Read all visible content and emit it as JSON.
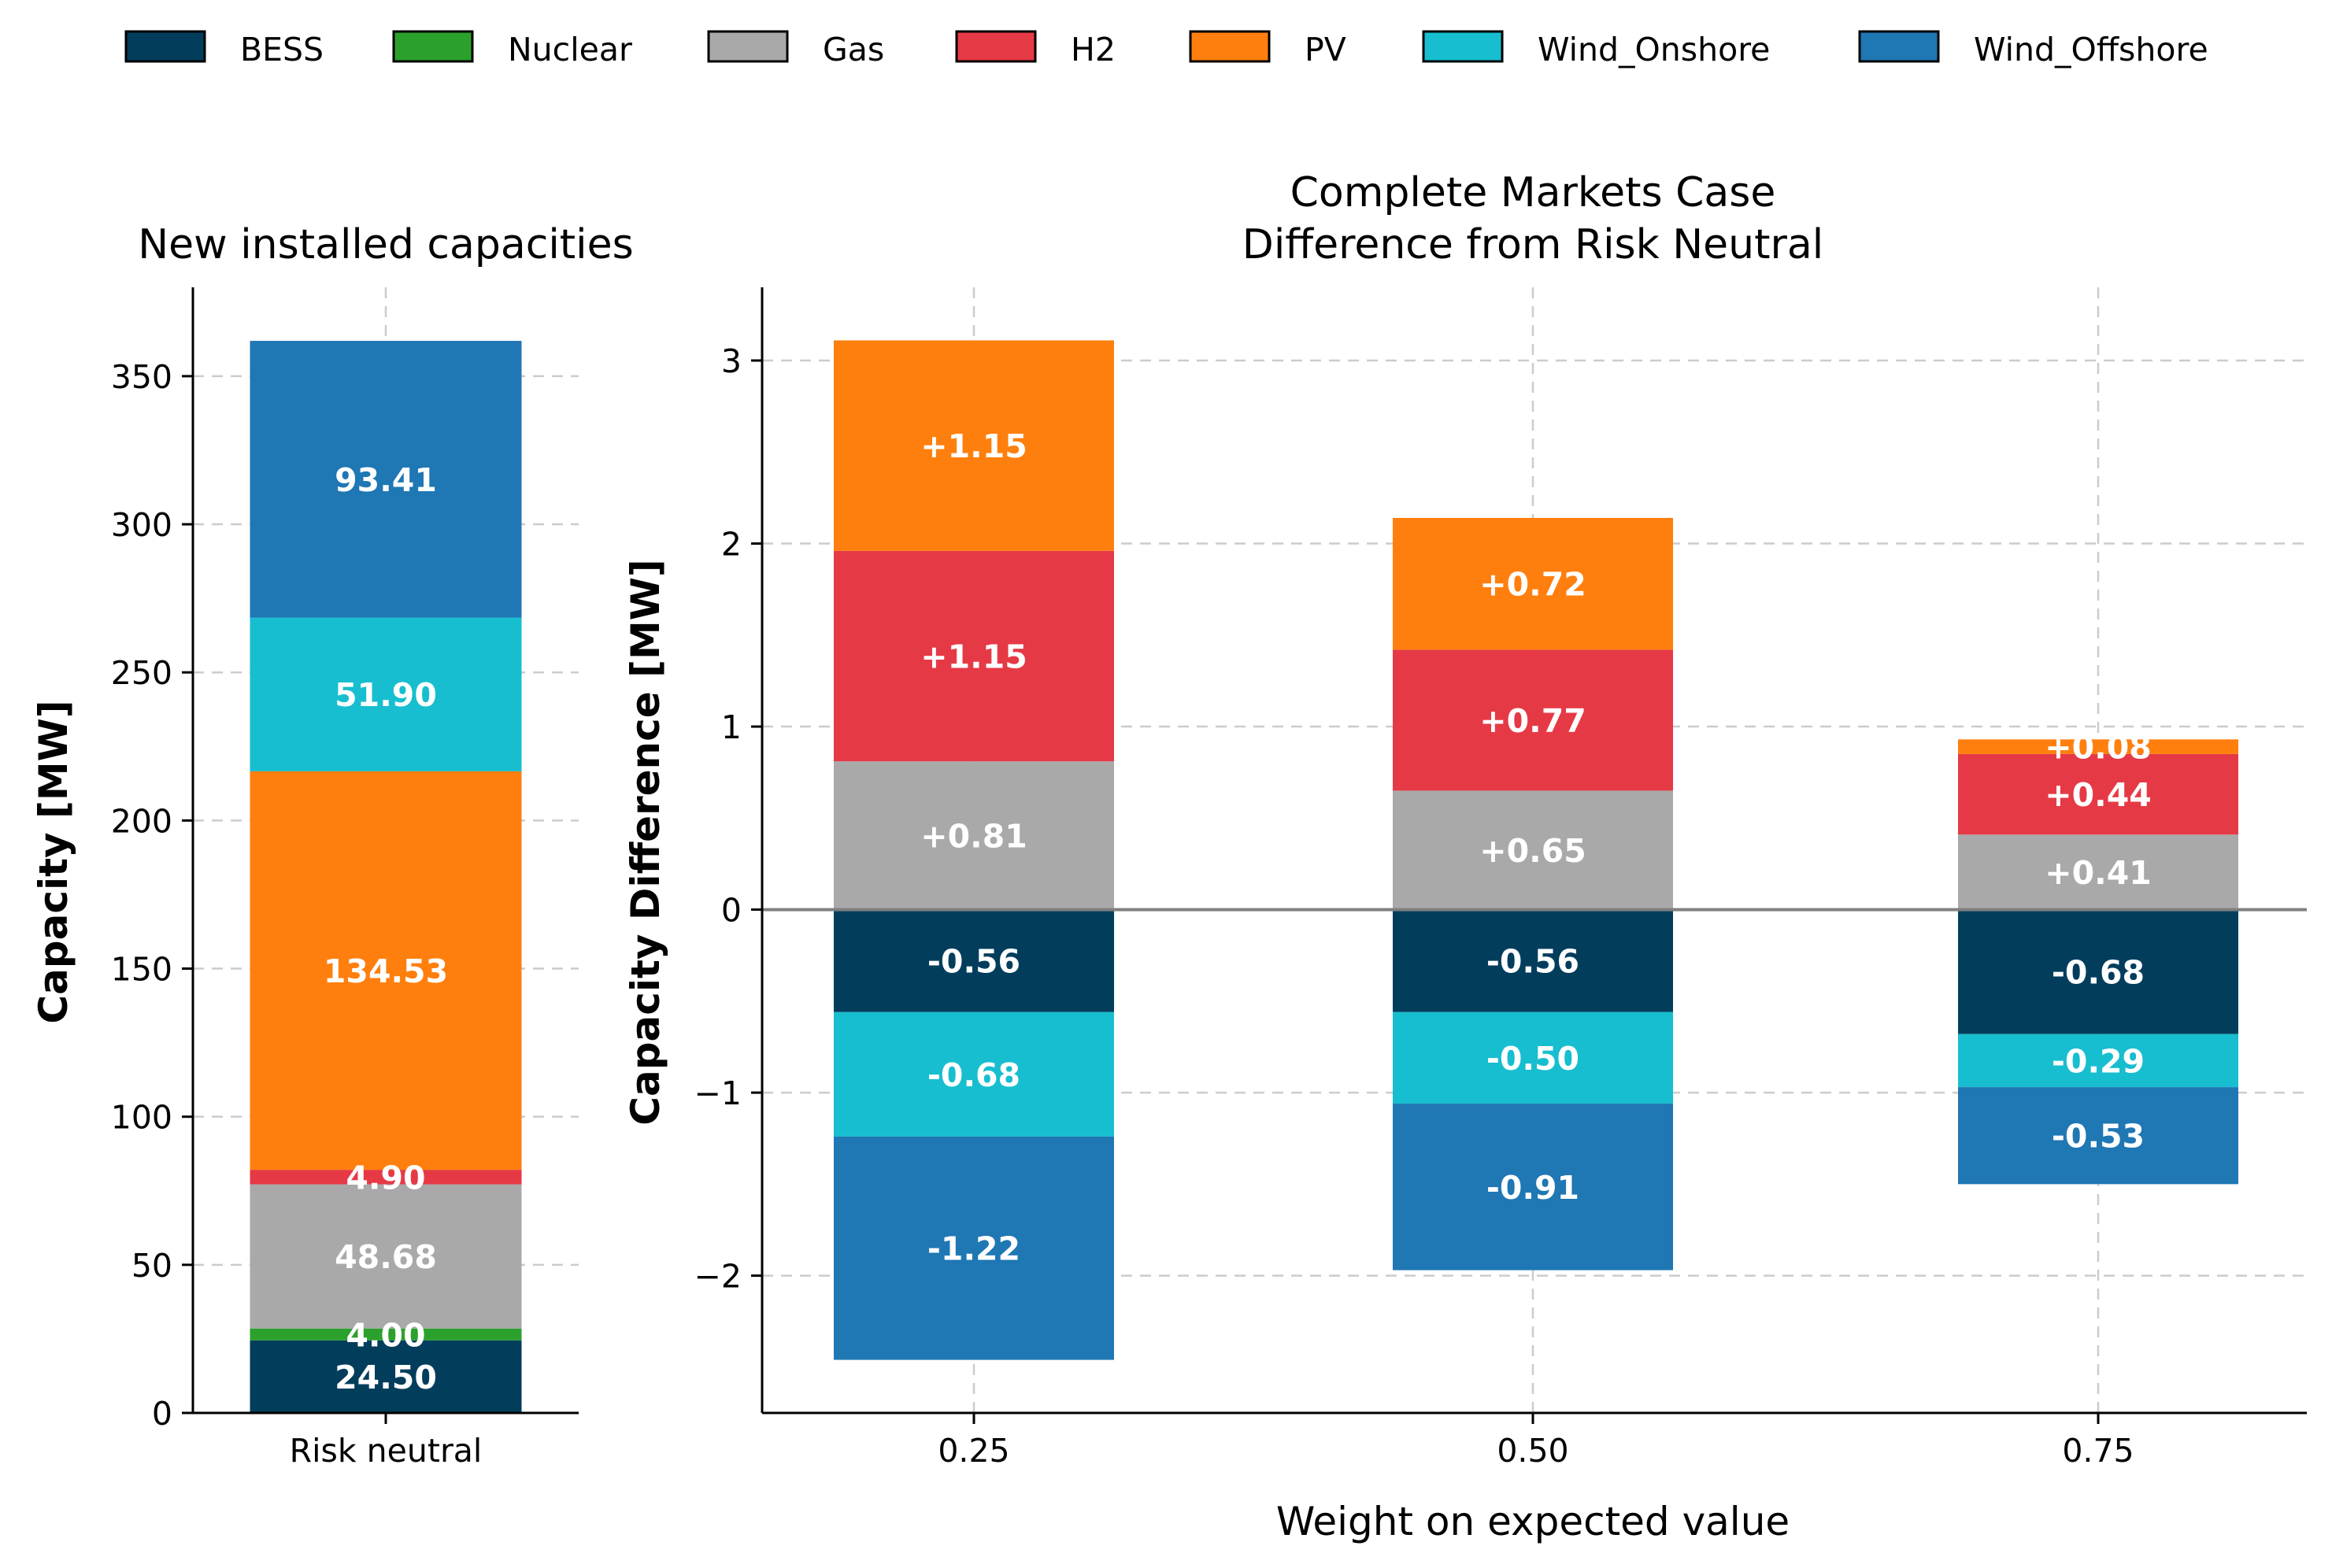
{
  "colors": {
    "BESS": "#023E5C",
    "Nuclear": "#2CA02C",
    "Gas": "#A9A9A9",
    "H2": "#E63946",
    "PV": "#FF7F0E",
    "Wind_Onshore": "#17BECF",
    "Wind_Offshore": "#1F77B4"
  },
  "legend": [
    "BESS",
    "Nuclear",
    "Gas",
    "H2",
    "PV",
    "Wind_Onshore",
    "Wind_Offshore"
  ],
  "chart_data": [
    {
      "type": "bar",
      "stacked": true,
      "title": "New installed capacities",
      "xlabel": "",
      "ylabel": "Capacity [MW]",
      "categories": [
        "Risk neutral"
      ],
      "ylim": [
        0,
        380
      ],
      "yticks": [
        0,
        50,
        100,
        150,
        200,
        250,
        300,
        350
      ],
      "grid": true,
      "series": [
        {
          "name": "BESS",
          "values": [
            24.5
          ],
          "label": "24.50"
        },
        {
          "name": "Nuclear",
          "values": [
            4.0
          ],
          "label": "4.00"
        },
        {
          "name": "Gas",
          "values": [
            48.68
          ],
          "label": "48.68"
        },
        {
          "name": "H2",
          "values": [
            4.9
          ],
          "label": "4.90"
        },
        {
          "name": "PV",
          "values": [
            134.53
          ],
          "label": "134.53"
        },
        {
          "name": "Wind_Onshore",
          "values": [
            51.9
          ],
          "label": "51.90"
        },
        {
          "name": "Wind_Offshore",
          "values": [
            93.41
          ],
          "label": "93.41"
        }
      ]
    },
    {
      "type": "bar",
      "stacked": true,
      "title": [
        "Complete Markets Case",
        "Difference from Risk Neutral"
      ],
      "xlabel": "Weight on expected value",
      "ylabel": "Capacity Difference [MW]",
      "categories": [
        "0.25",
        "0.50",
        "0.75"
      ],
      "ylim": [
        -2.75,
        3.4
      ],
      "yticks": [
        -2,
        -1,
        0,
        1,
        2,
        3
      ],
      "grid": true,
      "legend_position": "top",
      "series": [
        {
          "name": "Gas",
          "values": [
            0.81,
            0.65,
            0.41
          ],
          "labels": [
            "+0.81",
            "+0.65",
            "+0.41"
          ]
        },
        {
          "name": "H2",
          "values": [
            1.15,
            0.77,
            0.44
          ],
          "labels": [
            "+1.15",
            "+0.77",
            "+0.44"
          ]
        },
        {
          "name": "PV",
          "values": [
            1.15,
            0.72,
            0.08
          ],
          "labels": [
            "+1.15",
            "+0.72",
            "+0.08"
          ]
        },
        {
          "name": "BESS",
          "values": [
            -0.56,
            -0.56,
            -0.68
          ],
          "labels": [
            "-0.56",
            "-0.56",
            "-0.68"
          ]
        },
        {
          "name": "Wind_Onshore",
          "values": [
            -0.68,
            -0.5,
            -0.29
          ],
          "labels": [
            "-0.68",
            "-0.50",
            "-0.29"
          ]
        },
        {
          "name": "Wind_Offshore",
          "values": [
            -1.22,
            -0.91,
            -0.53
          ],
          "labels": [
            "-1.22",
            "-0.91",
            "-0.53"
          ]
        }
      ]
    }
  ]
}
